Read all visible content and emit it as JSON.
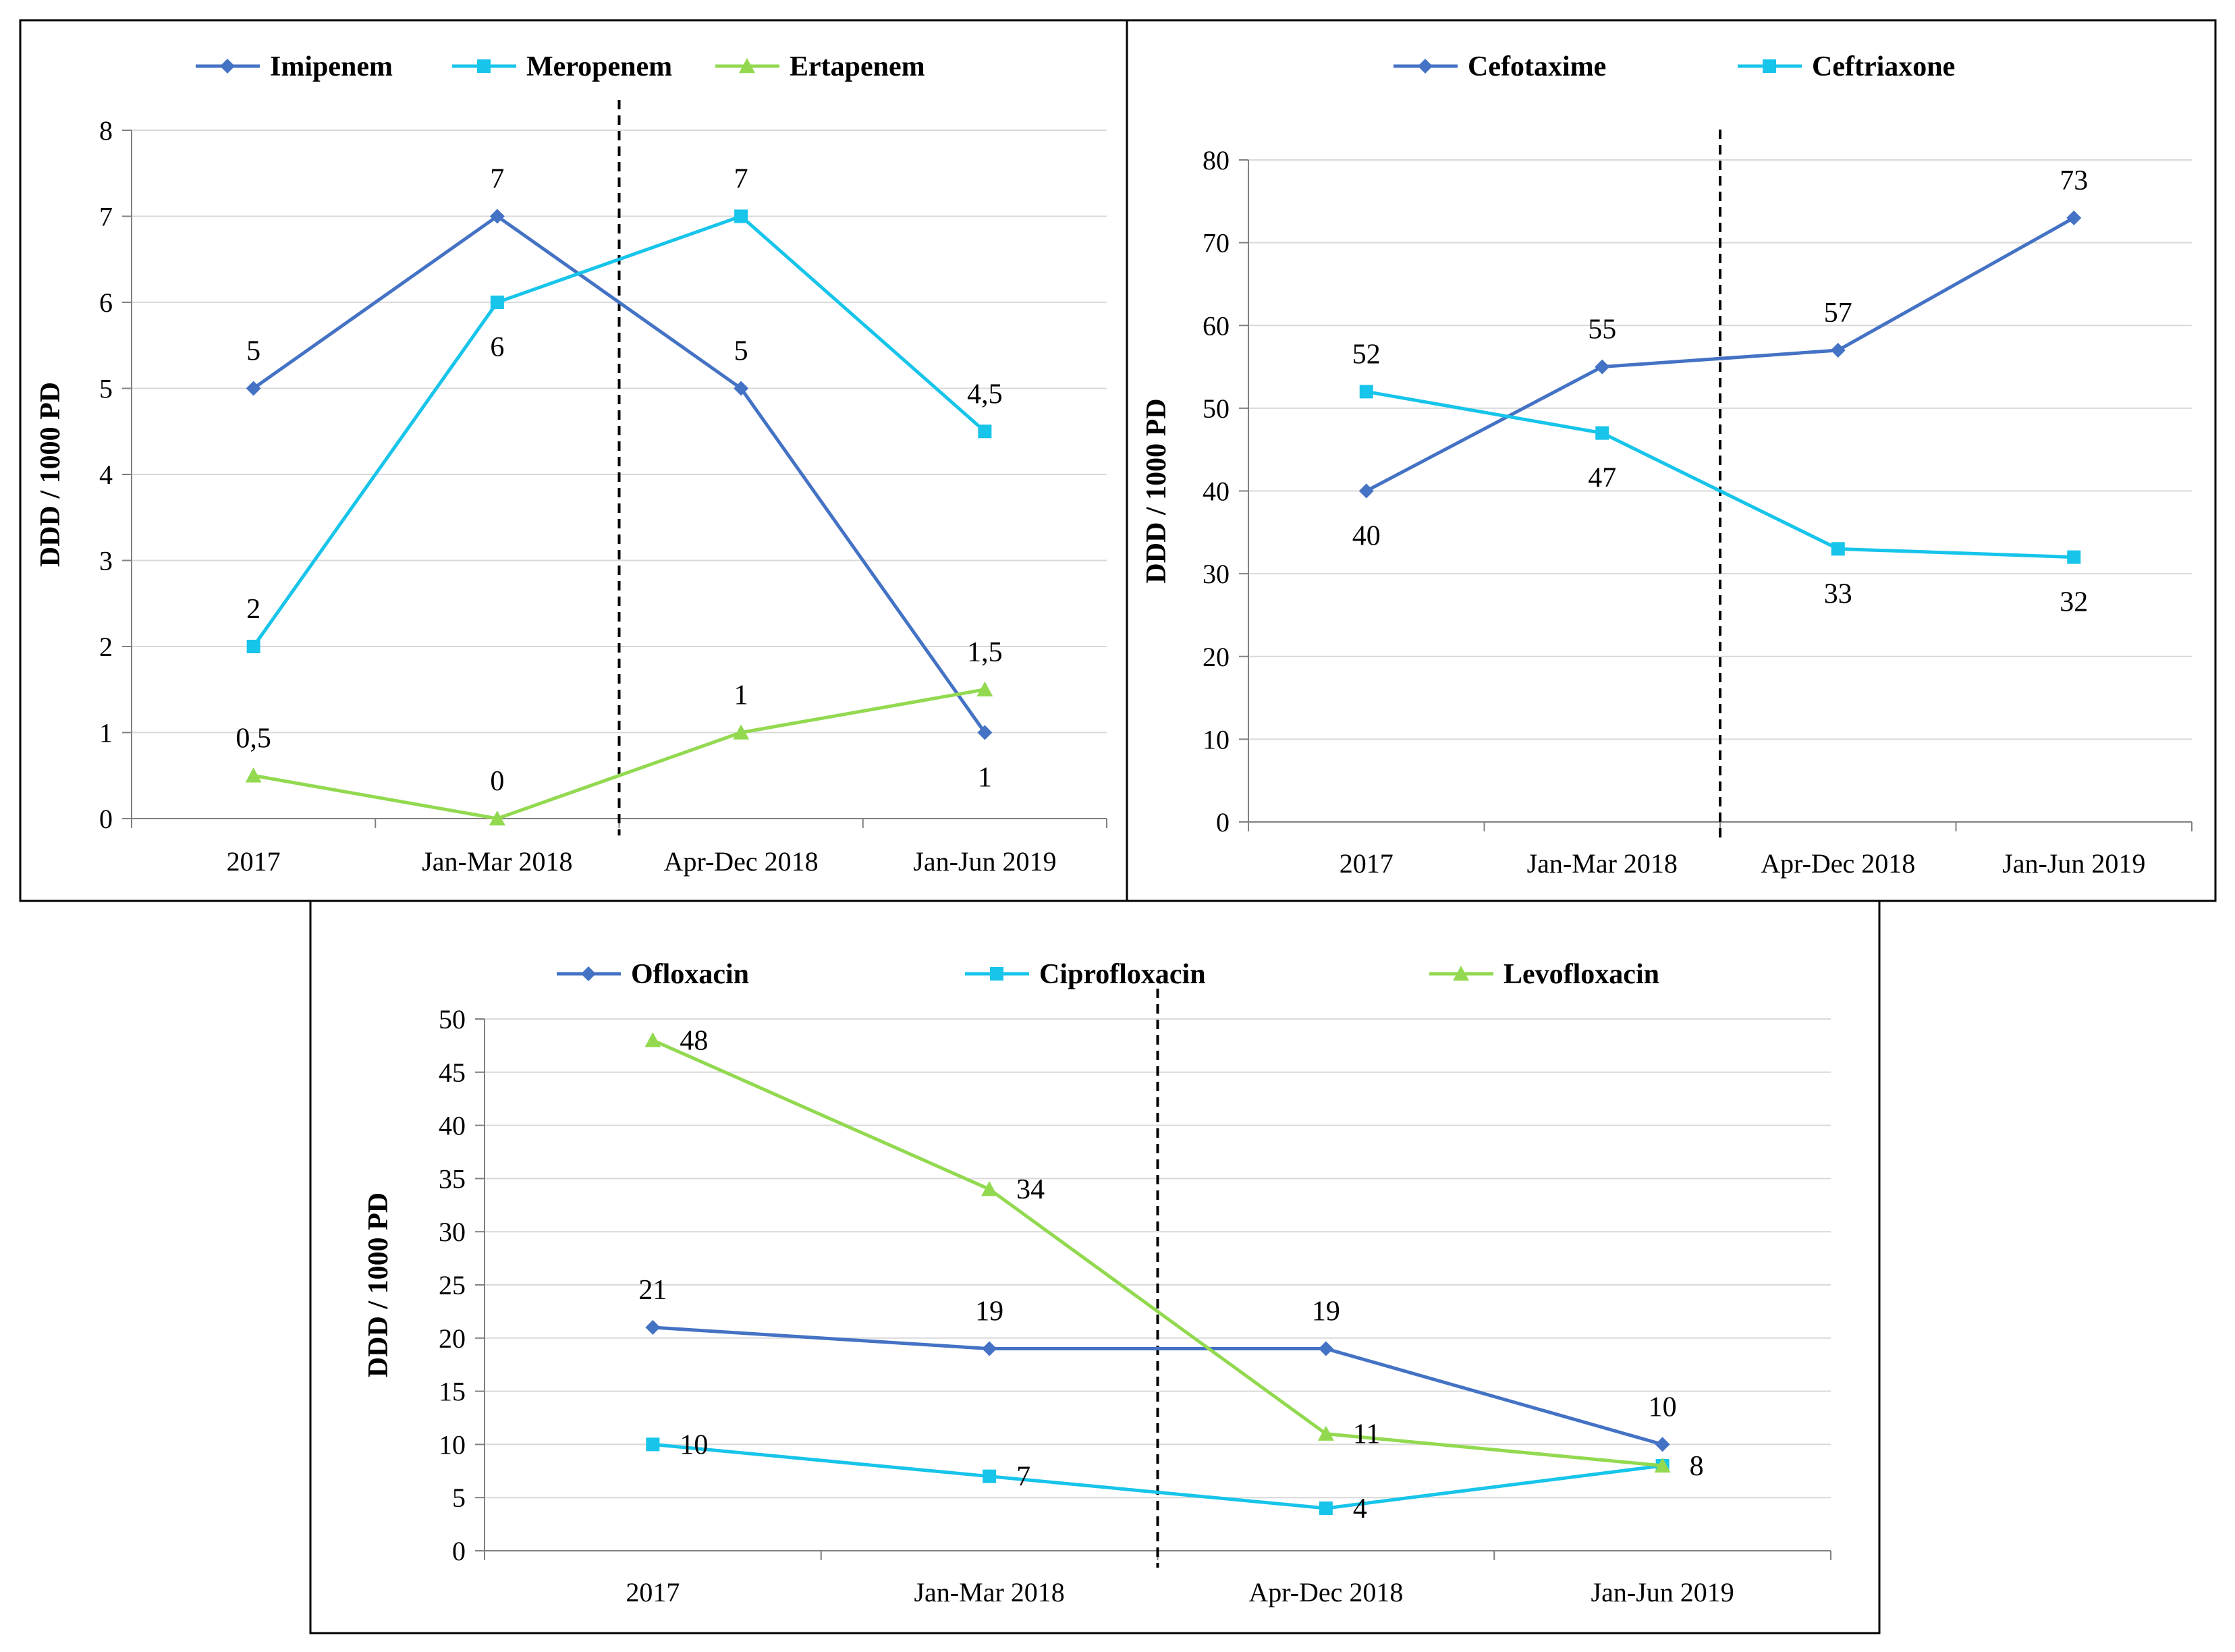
{
  "chart_data": [
    {
      "type": "line",
      "title": "",
      "xlabel": "",
      "ylabel": "DDD / 1000 PD",
      "categories": [
        "2017",
        "Jan-Mar 2018",
        "Apr-Dec 2018",
        "Jan-Jun 2019"
      ],
      "ylim": [
        0,
        8
      ],
      "yticks": [
        "0",
        "1",
        "2",
        "3",
        "4",
        "5",
        "6",
        "7",
        "8"
      ],
      "grid": true,
      "legend": "top",
      "divider_after_category": 1,
      "series": [
        {
          "name": "Imipenem",
          "color": "#4472C4",
          "marker": "diamond",
          "values": [
            5,
            7,
            5,
            1
          ],
          "labels": [
            "5",
            "7",
            "5",
            "1"
          ],
          "label_pos": [
            "above",
            "above",
            "above",
            "below"
          ]
        },
        {
          "name": "Meropenem",
          "color": "#17C4EA",
          "marker": "square",
          "values": [
            2,
            6,
            7,
            4.5
          ],
          "labels": [
            "2",
            "6",
            "7",
            "4,5"
          ],
          "label_pos": [
            "above",
            "below",
            "above",
            "above"
          ]
        },
        {
          "name": "Ertapenem",
          "color": "#92D950",
          "marker": "triangle",
          "values": [
            0.5,
            0,
            1,
            1.5
          ],
          "labels": [
            "0,5",
            "0",
            "1",
            "1,5"
          ],
          "label_pos": [
            "above",
            "above",
            "above",
            "above"
          ]
        }
      ]
    },
    {
      "type": "line",
      "title": "",
      "xlabel": "",
      "ylabel": "DDD / 1000 PD",
      "categories": [
        "2017",
        "Jan-Mar 2018",
        "Apr-Dec 2018",
        "Jan-Jun 2019"
      ],
      "ylim": [
        0,
        80
      ],
      "yticks": [
        "0",
        "10",
        "20",
        "30",
        "40",
        "50",
        "60",
        "70",
        "80"
      ],
      "grid": true,
      "legend": "top",
      "divider_after_category": 1,
      "series": [
        {
          "name": "Cefotaxime",
          "color": "#4472C4",
          "marker": "diamond",
          "values": [
            40,
            55,
            57,
            73
          ],
          "labels": [
            "40",
            "55",
            "57",
            "73"
          ],
          "label_pos": [
            "below",
            "above",
            "above",
            "above"
          ]
        },
        {
          "name": "Ceftriaxone",
          "color": "#17C4EA",
          "marker": "square",
          "values": [
            52,
            47,
            33,
            32
          ],
          "labels": [
            "52",
            "47",
            "33",
            "32"
          ],
          "label_pos": [
            "above",
            "below",
            "below",
            "below"
          ]
        }
      ]
    },
    {
      "type": "line",
      "title": "",
      "xlabel": "",
      "ylabel": "DDD / 1000 PD",
      "categories": [
        "2017",
        "Jan-Mar 2018",
        "Apr-Dec 2018",
        "Jan-Jun 2019"
      ],
      "ylim": [
        0,
        50
      ],
      "yticks": [
        "0",
        "5",
        "10",
        "15",
        "20",
        "25",
        "30",
        "35",
        "40",
        "45",
        "50"
      ],
      "grid": true,
      "legend": "top",
      "divider_after_category": 1,
      "series": [
        {
          "name": "Ofloxacin",
          "color": "#4472C4",
          "marker": "diamond",
          "values": [
            21,
            19,
            19,
            10
          ],
          "labels": [
            "21",
            "19",
            "19",
            "10"
          ],
          "label_pos": [
            "above",
            "above",
            "above",
            "above"
          ]
        },
        {
          "name": "Ciprofloxacin",
          "color": "#17C4EA",
          "marker": "square",
          "values": [
            10,
            7,
            4,
            8
          ],
          "labels": [
            "10",
            "7",
            "4",
            ""
          ],
          "label_pos": [
            "right",
            "right",
            "right",
            "right"
          ]
        },
        {
          "name": "Levofloxacin",
          "color": "#92D950",
          "marker": "triangle",
          "values": [
            48,
            34,
            11,
            8
          ],
          "labels": [
            "48",
            "34",
            "11",
            "8"
          ],
          "label_pos": [
            "right",
            "right",
            "right",
            "right"
          ]
        }
      ]
    }
  ]
}
